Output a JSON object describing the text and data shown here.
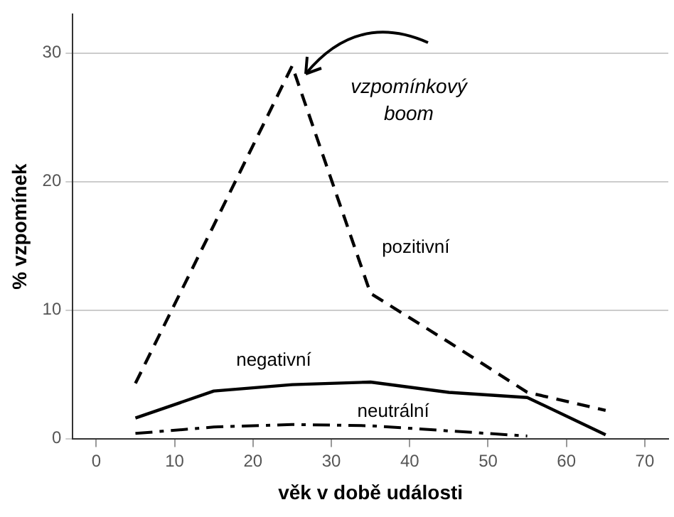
{
  "chart_data": {
    "type": "line",
    "xlabel": "věk v době události",
    "ylabel": "% vzpomínek",
    "x": [
      5,
      15,
      25,
      35,
      45,
      55,
      65
    ],
    "series": [
      {
        "name": "pozitivní",
        "color": "#000000",
        "line_style": "dashed",
        "values": [
          4.3,
          16.6,
          29.0,
          11.3,
          7.5,
          3.6,
          2.2
        ]
      },
      {
        "name": "negativní",
        "color": "#000000",
        "line_style": "solid",
        "values": [
          1.6,
          3.7,
          4.2,
          4.4,
          3.6,
          3.2,
          0.3
        ]
      },
      {
        "name": "neutrální",
        "color": "#000000",
        "line_style": "dashdot",
        "values": [
          0.4,
          0.9,
          1.1,
          1.0,
          0.6,
          0.2,
          null
        ]
      }
    ],
    "xlim": [
      -3,
      73
    ],
    "xticks": [
      0,
      10,
      20,
      30,
      40,
      50,
      60,
      70
    ],
    "ylim": [
      0,
      33
    ],
    "yticks": [
      0,
      10,
      20,
      30
    ],
    "grid": "y",
    "legend": false,
    "marker": "none",
    "annotations": [
      {
        "text": "vzpomínkový boom",
        "x": 25,
        "y": 29.0
      }
    ]
  }
}
